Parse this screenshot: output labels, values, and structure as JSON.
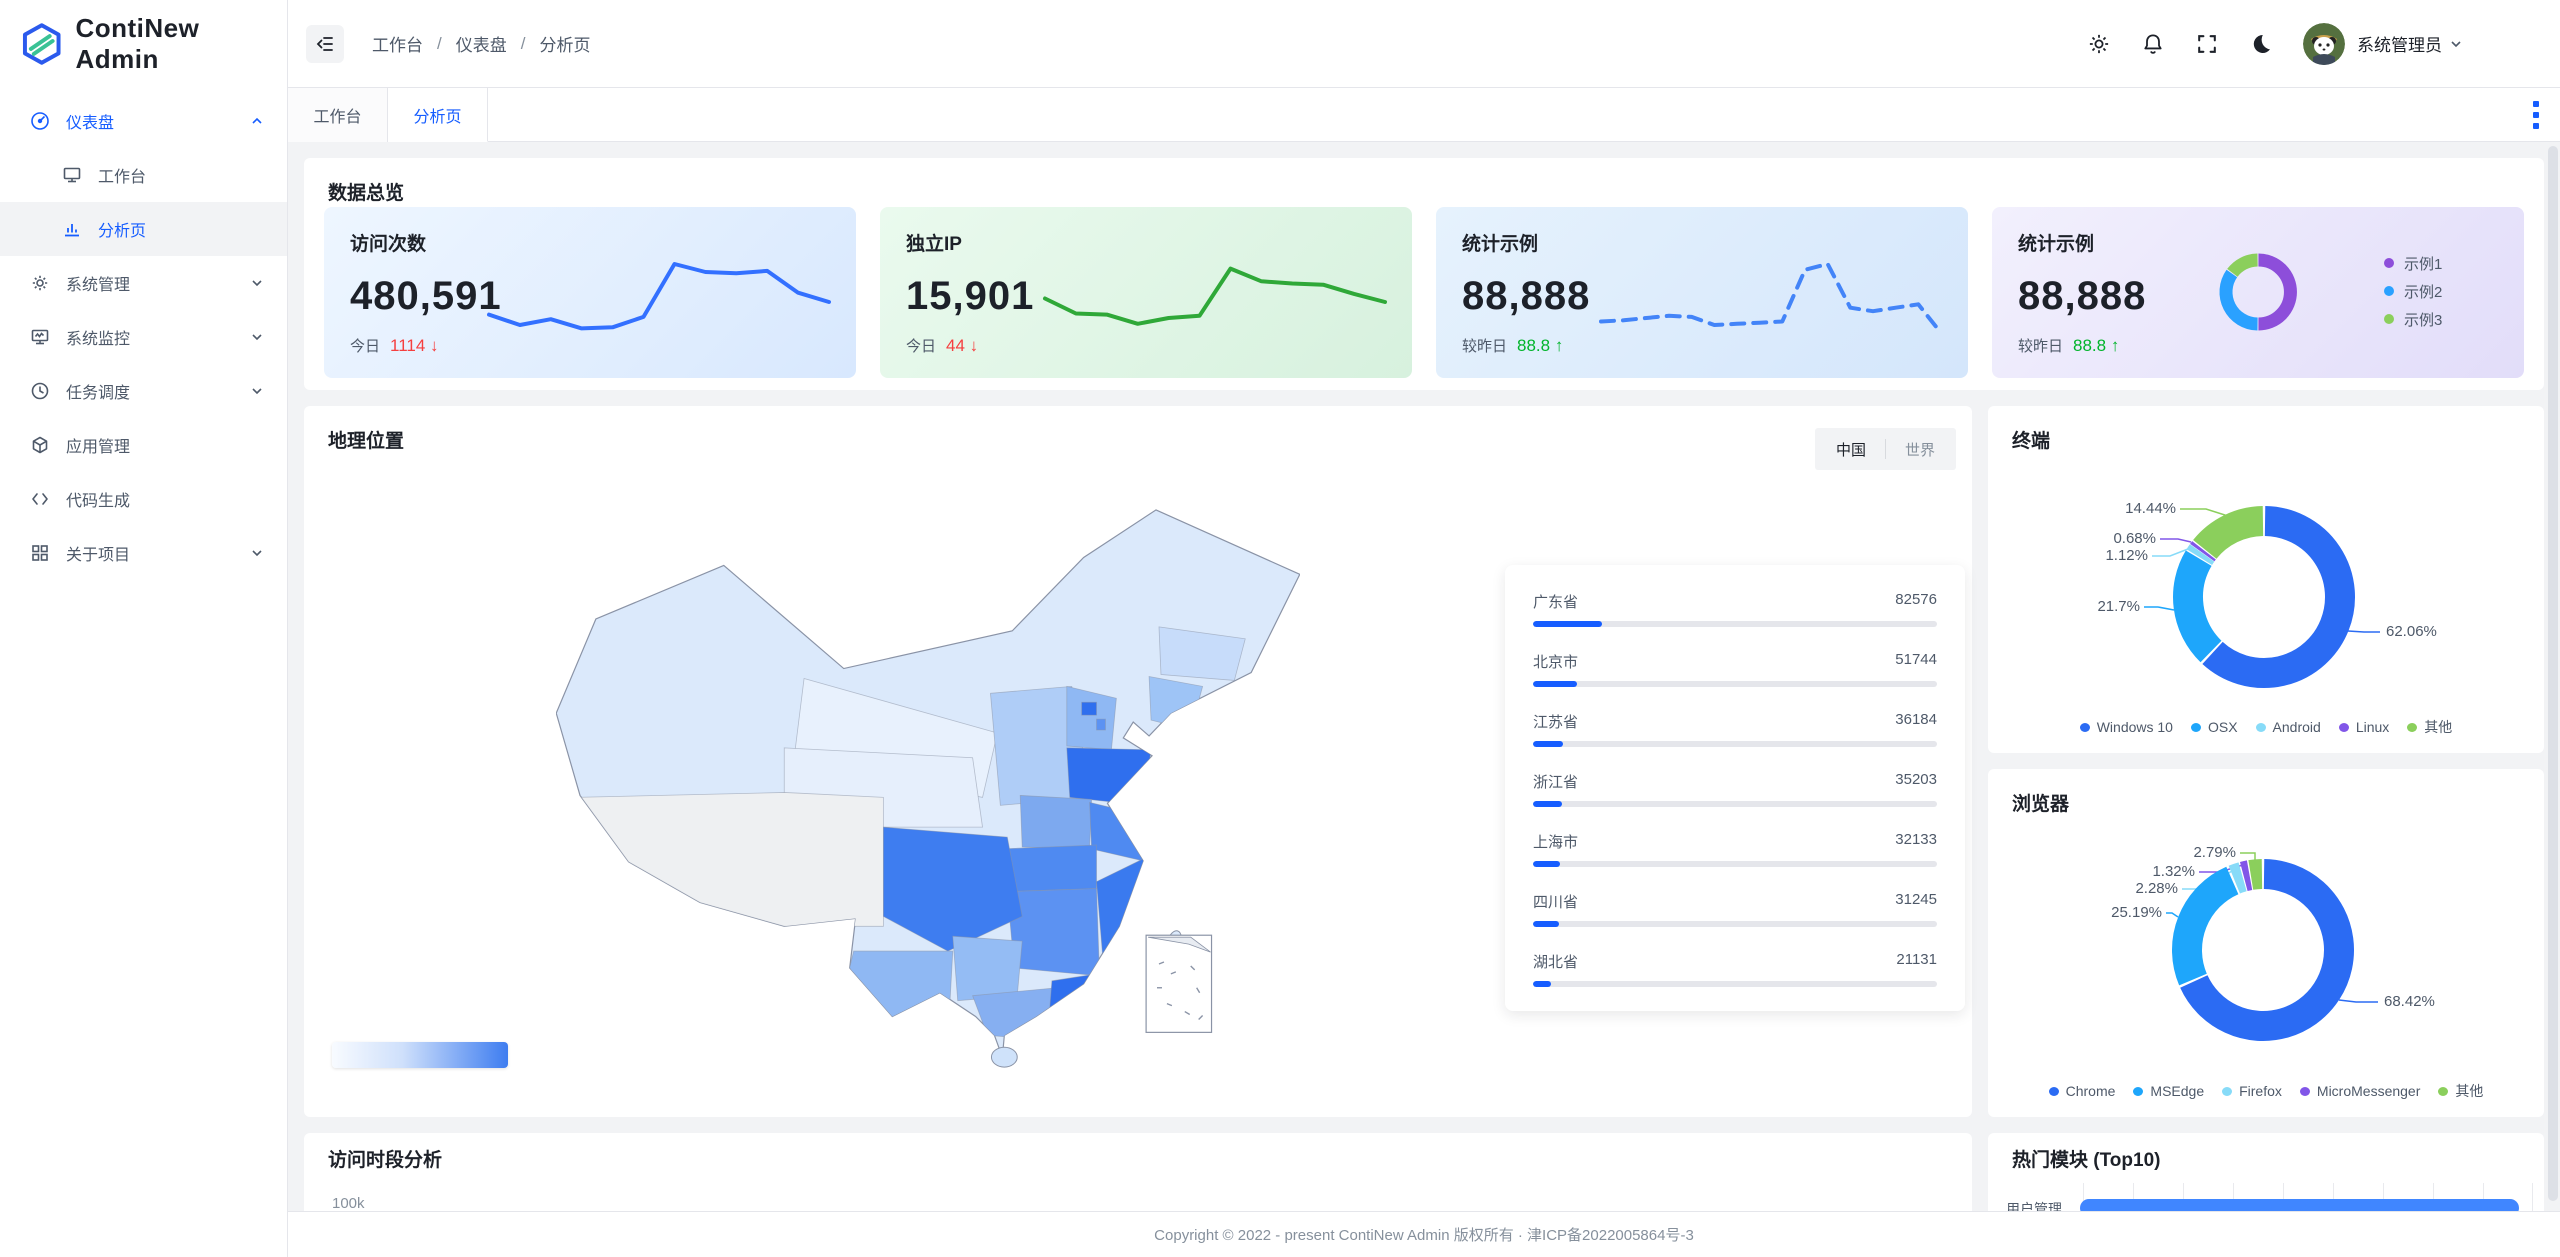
{
  "app": {
    "name": "ContiNew Admin"
  },
  "sidebar": {
    "items": [
      {
        "label": "仪表盘",
        "icon": "dashboard-icon",
        "active": true,
        "expanded": true
      },
      {
        "label": "工作台",
        "icon": "workplace-icon"
      },
      {
        "label": "分析页",
        "icon": "analysis-icon",
        "active": true
      },
      {
        "label": "系统管理",
        "icon": "settings-icon",
        "collapsible": true
      },
      {
        "label": "系统监控",
        "icon": "monitor-icon",
        "collapsible": true
      },
      {
        "label": "任务调度",
        "icon": "schedule-icon",
        "collapsible": true
      },
      {
        "label": "应用管理",
        "icon": "apps-icon"
      },
      {
        "label": "代码生成",
        "icon": "code-icon"
      },
      {
        "label": "关于项目",
        "icon": "about-icon",
        "collapsible": true
      }
    ]
  },
  "header": {
    "breadcrumb": [
      "工作台",
      "仪表盘",
      "分析页"
    ],
    "icons": [
      "settings-icon",
      "notification-icon",
      "fullscreen-icon",
      "dark-mode-icon"
    ],
    "user": "系统管理员"
  },
  "tabs": {
    "items": [
      "工作台",
      "分析页"
    ],
    "active": "分析页"
  },
  "overview": {
    "title": "数据总览",
    "cards": [
      {
        "title": "访问次数",
        "value": "480,591",
        "label": "今日",
        "delta": "1114",
        "arrow": "↓",
        "dir": "down"
      },
      {
        "title": "独立IP",
        "value": "15,901",
        "label": "今日",
        "delta": "44",
        "arrow": "↓",
        "dir": "down"
      },
      {
        "title": "统计示例",
        "value": "88,888",
        "label": "较昨日",
        "delta": "88.8",
        "arrow": "↑",
        "dir": "up"
      },
      {
        "title": "统计示例",
        "value": "88,888",
        "label": "较昨日",
        "delta": "88.8",
        "arrow": "↑",
        "dir": "up",
        "legend": [
          "示例1",
          "示例2",
          "示例3"
        ]
      }
    ]
  },
  "geo": {
    "title": "地理位置",
    "toggle": [
      "中国",
      "世界"
    ],
    "active": "中国",
    "provinces": [
      {
        "name": "广东省",
        "value": "82576"
      },
      {
        "name": "北京市",
        "value": "51744"
      },
      {
        "name": "江苏省",
        "value": "36184"
      },
      {
        "name": "浙江省",
        "value": "35203"
      },
      {
        "name": "上海市",
        "value": "32133"
      },
      {
        "name": "四川省",
        "value": "31245"
      },
      {
        "name": "湖北省",
        "value": "21131"
      }
    ]
  },
  "terminal": {
    "title": "终端",
    "callouts": [
      "14.44%",
      "0.68%",
      "1.12%",
      "21.7%",
      "62.06%"
    ],
    "legend": [
      "Windows 10",
      "OSX",
      "Android",
      "Linux",
      "其他"
    ]
  },
  "browser": {
    "title": "浏览器",
    "callouts": [
      "2.79%",
      "1.32%",
      "2.28%",
      "25.19%",
      "68.42%"
    ],
    "legend": [
      "Chrome",
      "MSEdge",
      "Firefox",
      "MicroMessenger",
      "其他"
    ]
  },
  "hours": {
    "title": "访问时段分析",
    "ytick": "100k"
  },
  "top_modules": {
    "title": "热门模块 (Top10)",
    "first_label": "用户管理"
  },
  "footer": {
    "copyright": "Copyright © 2022 - present ContiNew Admin 版权所有 · 津ICP备2022005864号-3"
  },
  "colors": {
    "primary": "#165dff",
    "up": "#00b42a",
    "down": "#f53f3f",
    "line_blue": "#3370ff",
    "line_green": "#2fa838",
    "line_dashed_blue": "#4384f8"
  },
  "chart_data": [
    {
      "id": "visits_trend",
      "type": "line",
      "title": "访问次数",
      "values": [
        36,
        27,
        32,
        24,
        25,
        34,
        80,
        73,
        72,
        74,
        55,
        47
      ],
      "color": "#3370ff",
      "dashed": false
    },
    {
      "id": "ip_trend",
      "type": "line",
      "title": "独立IP",
      "values": [
        50,
        37,
        36,
        28,
        33,
        35,
        76,
        65,
        63,
        62,
        54,
        47
      ],
      "color": "#2fa838",
      "dashed": false
    },
    {
      "id": "stat_trend",
      "type": "line",
      "title": "统计示例",
      "values": [
        30,
        31,
        33,
        35,
        34,
        27,
        28,
        29,
        30,
        75,
        80,
        42,
        39,
        42,
        45,
        20
      ],
      "color": "#4384f8",
      "dashed": true
    },
    {
      "id": "stat_donut",
      "type": "pie",
      "title": "统计示例",
      "labels": [
        "示例1",
        "示例2",
        "示例3"
      ],
      "values": [
        50,
        35,
        15
      ],
      "colors": [
        "#8d4eda",
        "#2aa1ff",
        "#8bcf5c"
      ],
      "legend_position": "right"
    },
    {
      "id": "terminal_donut",
      "type": "pie",
      "title": "终端",
      "labels": [
        "Windows 10",
        "OSX",
        "Android",
        "Linux",
        "其他"
      ],
      "values": [
        62.06,
        21.7,
        1.12,
        0.68,
        14.44
      ],
      "colors": [
        "#2b6bf3",
        "#1ea6fb",
        "#87dbf8",
        "#8156e8",
        "#8bcf5c"
      ],
      "legend_position": "bottom"
    },
    {
      "id": "browser_donut",
      "type": "pie",
      "title": "浏览器",
      "labels": [
        "Chrome",
        "MSEdge",
        "Firefox",
        "MicroMessenger",
        "其他"
      ],
      "values": [
        68.42,
        25.19,
        2.28,
        1.32,
        2.79
      ],
      "colors": [
        "#2b6bf3",
        "#1ea6fb",
        "#87dbf8",
        "#8156e8",
        "#8bcf5c"
      ],
      "legend_position": "bottom"
    },
    {
      "id": "geo_ranking",
      "type": "bar",
      "title": "地理位置",
      "categories": [
        "广东省",
        "北京市",
        "江苏省",
        "浙江省",
        "上海市",
        "四川省",
        "湖北省"
      ],
      "values": [
        82576,
        51744,
        36184,
        35203,
        32133,
        31245,
        21131
      ],
      "max": 480591
    },
    {
      "id": "top_modules_bar",
      "type": "bar",
      "title": "热门模块 (Top10)",
      "categories": [
        "用户管理"
      ],
      "values": [
        98
      ],
      "max": 100,
      "grid": true
    },
    {
      "id": "visit_hours",
      "type": "line",
      "title": "访问时段分析",
      "visible_axis_ticks": [
        "100k"
      ],
      "values": []
    }
  ]
}
